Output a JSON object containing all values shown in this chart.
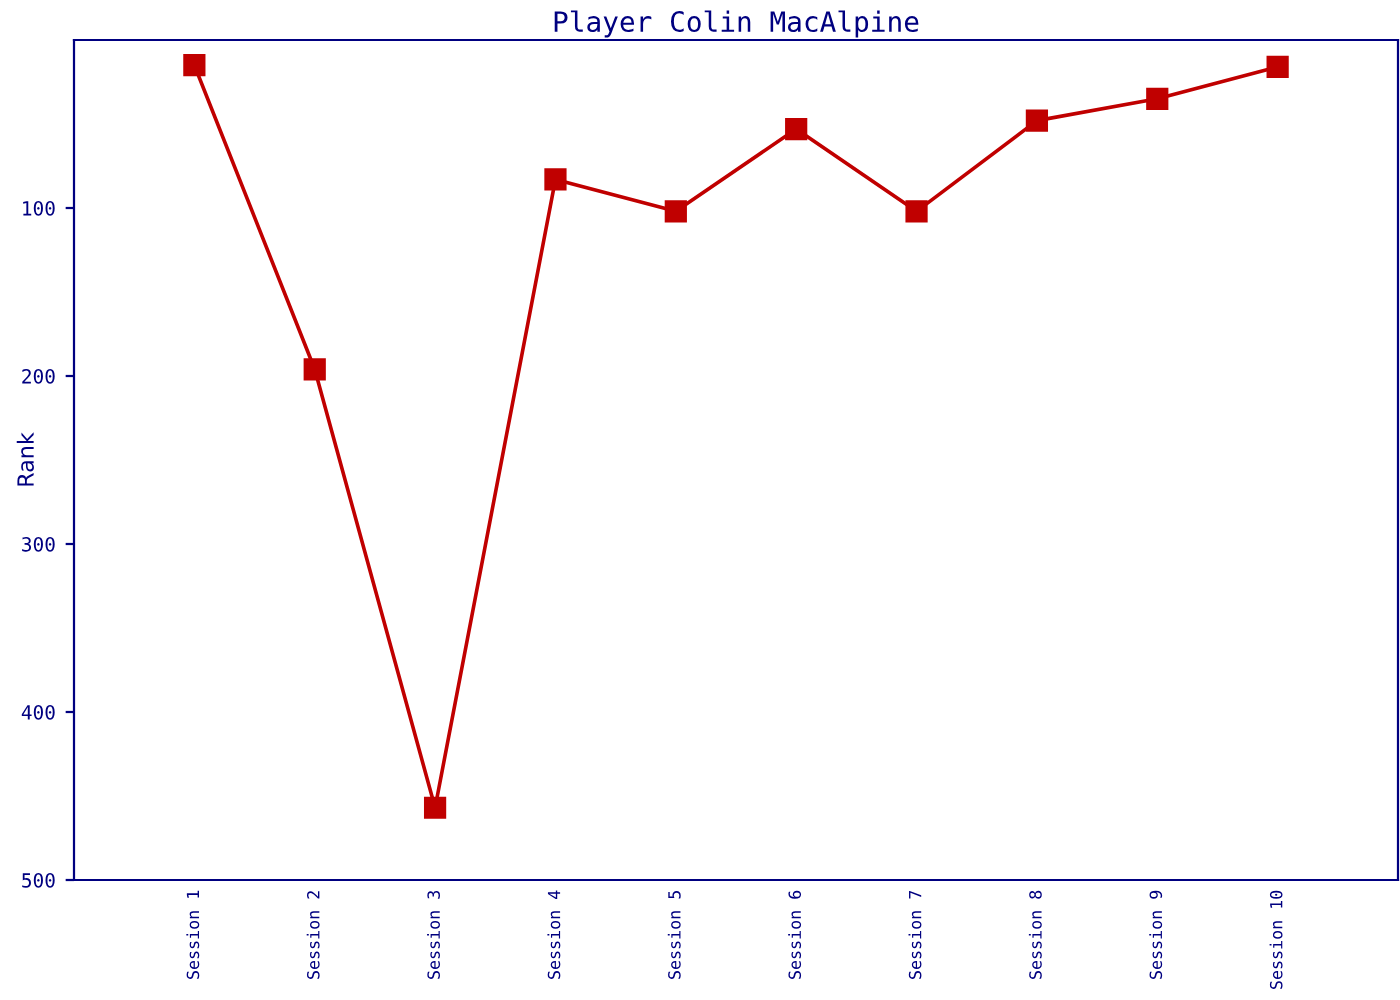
{
  "chart_data": {
    "type": "line",
    "title": "Player Colin MacAlpine",
    "ylabel": "Rank",
    "categories": [
      "Session 1",
      "Session 2",
      "Session 3",
      "Session 4",
      "Session 5",
      "Session 6",
      "Session 7",
      "Session 8",
      "Session 9",
      "Session 10"
    ],
    "series": [
      {
        "color": "#c00000",
        "values": [
          15,
          196,
          457,
          83,
          102,
          53,
          102,
          48,
          35,
          16
        ]
      }
    ],
    "ylim": [
      500,
      0
    ],
    "yticks": [
      100,
      200,
      300,
      400,
      500
    ],
    "grid": false,
    "marker": "square",
    "line_style": "solid"
  }
}
